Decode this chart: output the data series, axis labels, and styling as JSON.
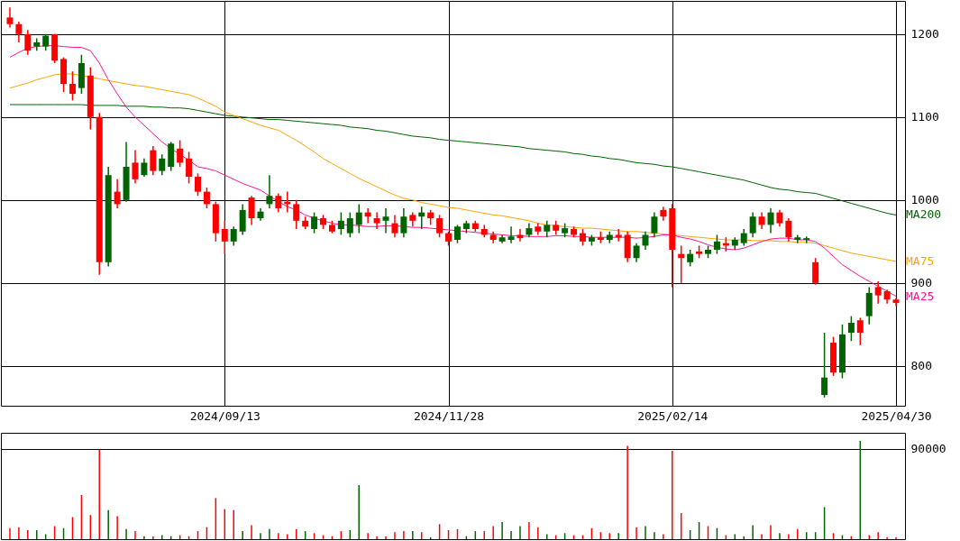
{
  "chart_data": [
    {
      "type": "candlestick",
      "categories": [
        null,
        null,
        null,
        null,
        null,
        null,
        null,
        null,
        null,
        null,
        null,
        null,
        null,
        null,
        null,
        null,
        null,
        null,
        null,
        null,
        null,
        null,
        null,
        null,
        "2024/09/13",
        null,
        null,
        null,
        null,
        null,
        null,
        null,
        null,
        null,
        null,
        null,
        null,
        null,
        null,
        null,
        null,
        null,
        null,
        null,
        null,
        null,
        null,
        null,
        null,
        "2024/11/28",
        null,
        null,
        null,
        null,
        null,
        null,
        null,
        null,
        null,
        null,
        null,
        null,
        null,
        null,
        null,
        null,
        null,
        null,
        null,
        null,
        null,
        null,
        null,
        null,
        "2025/02/14",
        null,
        null,
        null,
        null,
        null,
        null,
        null,
        null,
        null,
        null,
        null,
        null,
        null,
        null,
        null,
        null,
        null,
        null,
        null,
        null,
        null,
        null,
        null,
        null,
        "2025/04/30"
      ],
      "ohlc": [
        [
          1220,
          1232,
          1208,
          1212
        ],
        [
          1212,
          1215,
          1190,
          1200
        ],
        [
          1200,
          1205,
          1175,
          1180
        ],
        [
          1185,
          1195,
          1180,
          1190
        ],
        [
          1185,
          1200,
          1180,
          1198
        ],
        [
          1200,
          1200,
          1165,
          1168
        ],
        [
          1170,
          1172,
          1130,
          1140
        ],
        [
          1140,
          1155,
          1120,
          1128
        ],
        [
          1135,
          1175,
          1128,
          1165
        ],
        [
          1150,
          1160,
          1085,
          1100
        ],
        [
          1100,
          1105,
          910,
          925
        ],
        [
          925,
          1040,
          920,
          1030
        ],
        [
          1010,
          1025,
          990,
          995
        ],
        [
          1000,
          1070,
          998,
          1040
        ],
        [
          1045,
          1060,
          1020,
          1025
        ],
        [
          1030,
          1050,
          1028,
          1045
        ],
        [
          1060,
          1065,
          1030,
          1035
        ],
        [
          1035,
          1055,
          1030,
          1050
        ],
        [
          1040,
          1070,
          1035,
          1068
        ],
        [
          1062,
          1072,
          1040,
          1045
        ],
        [
          1050,
          1058,
          1020,
          1028
        ],
        [
          1028,
          1032,
          1005,
          1010
        ],
        [
          1010,
          1015,
          990,
          995
        ],
        [
          995,
          998,
          950,
          960
        ],
        [
          965,
          975,
          935,
          950
        ],
        [
          950,
          968,
          945,
          965
        ],
        [
          962,
          995,
          958,
          988
        ],
        [
          1003,
          1005,
          970,
          978
        ],
        [
          978,
          990,
          975,
          986
        ],
        [
          995,
          1030,
          990,
          1005
        ],
        [
          1005,
          1008,
          985,
          990
        ],
        [
          998,
          1010,
          985,
          995
        ],
        [
          995,
          1000,
          965,
          975
        ],
        [
          975,
          980,
          965,
          968
        ],
        [
          965,
          985,
          960,
          980
        ],
        [
          978,
          982,
          965,
          970
        ],
        [
          970,
          975,
          960,
          962
        ],
        [
          965,
          985,
          958,
          975
        ],
        [
          960,
          985,
          955,
          978
        ],
        [
          970,
          995,
          960,
          985
        ],
        [
          985,
          990,
          972,
          980
        ],
        [
          978,
          985,
          965,
          972
        ],
        [
          975,
          990,
          960,
          980
        ],
        [
          972,
          982,
          955,
          960
        ],
        [
          960,
          990,
          955,
          980
        ],
        [
          982,
          985,
          968,
          975
        ],
        [
          980,
          992,
          965,
          985
        ],
        [
          985,
          988,
          970,
          978
        ],
        [
          978,
          982,
          955,
          960
        ],
        [
          960,
          962,
          945,
          950
        ],
        [
          952,
          970,
          948,
          968
        ],
        [
          965,
          975,
          960,
          972
        ],
        [
          972,
          975,
          962,
          965
        ],
        [
          965,
          970,
          955,
          958
        ],
        [
          958,
          962,
          948,
          952
        ],
        [
          950,
          958,
          948,
          955
        ],
        [
          952,
          968,
          948,
          956
        ],
        [
          958,
          965,
          950,
          954
        ],
        [
          958,
          972,
          955,
          966
        ],
        [
          968,
          972,
          958,
          962
        ],
        [
          962,
          975,
          955,
          970
        ],
        [
          970,
          975,
          958,
          963
        ],
        [
          960,
          972,
          955,
          966
        ],
        [
          965,
          968,
          955,
          958
        ],
        [
          960,
          965,
          945,
          950
        ],
        [
          950,
          958,
          945,
          955
        ],
        [
          955,
          962,
          948,
          952
        ],
        [
          952,
          962,
          948,
          958
        ],
        [
          958,
          965,
          950,
          955
        ],
        [
          958,
          962,
          925,
          930
        ],
        [
          930,
          948,
          925,
          945
        ],
        [
          945,
          962,
          940,
          958
        ],
        [
          960,
          985,
          955,
          980
        ],
        [
          988,
          992,
          975,
          980
        ],
        [
          990,
          995,
          895,
          940
        ],
        [
          935,
          945,
          900,
          930
        ],
        [
          925,
          940,
          920,
          935
        ],
        [
          938,
          945,
          930,
          935
        ],
        [
          935,
          945,
          930,
          940
        ],
        [
          940,
          958,
          935,
          950
        ],
        [
          948,
          955,
          938,
          945
        ],
        [
          945,
          955,
          940,
          952
        ],
        [
          948,
          965,
          945,
          960
        ],
        [
          960,
          985,
          955,
          980
        ],
        [
          980,
          985,
          965,
          970
        ],
        [
          970,
          990,
          960,
          985
        ],
        [
          985,
          988,
          968,
          972
        ],
        [
          975,
          978,
          950,
          955
        ],
        [
          952,
          958,
          948,
          955
        ],
        [
          952,
          956,
          948,
          954
        ],
        [
          925,
          930,
          898,
          900
        ],
        [
          765,
          840,
          762,
          786
        ],
        [
          828,
          835,
          788,
          792
        ],
        [
          792,
          850,
          785,
          838
        ],
        [
          840,
          860,
          830,
          852
        ],
        [
          855,
          858,
          825,
          840
        ],
        [
          860,
          895,
          850,
          888
        ],
        [
          895,
          902,
          875,
          885
        ],
        [
          890,
          892,
          875,
          880
        ],
        [
          880,
          882,
          872,
          876
        ]
      ],
      "colors": [
        "#ff0000",
        "#ff0000",
        "#ff0000",
        "#006400",
        "#006400",
        "#ff0000",
        "#ff0000",
        "#ff0000",
        "#006400",
        "#ff0000",
        "#ff0000",
        "#006400",
        "#ff0000",
        "#006400",
        "#ff0000",
        "#006400",
        "#ff0000",
        "#006400",
        "#006400",
        "#ff0000",
        "#ff0000",
        "#ff0000",
        "#ff0000",
        "#ff0000",
        "#ff0000",
        "#006400",
        "#006400",
        "#ff0000",
        "#006400",
        "#006400",
        "#ff0000",
        "#ff0000",
        "#ff0000",
        "#ff0000",
        "#006400",
        "#ff0000",
        "#ff0000",
        "#006400",
        "#006400",
        "#006400",
        "#ff0000",
        "#ff0000",
        "#006400",
        "#ff0000",
        "#006400",
        "#ff0000",
        "#006400",
        "#ff0000",
        "#ff0000",
        "#ff0000",
        "#006400",
        "#006400",
        "#ff0000",
        "#ff0000",
        "#ff0000",
        "#006400",
        "#006400",
        "#ff0000",
        "#006400",
        "#ff0000",
        "#006400",
        "#ff0000",
        "#006400",
        "#ff0000",
        "#ff0000",
        "#006400",
        "#ff0000",
        "#006400",
        "#ff0000",
        "#ff0000",
        "#006400",
        "#006400",
        "#006400",
        "#ff0000",
        "#ff0000",
        "#ff0000",
        "#006400",
        "#ff0000",
        "#006400",
        "#006400",
        "#ff0000",
        "#006400",
        "#006400",
        "#006400",
        "#ff0000",
        "#006400",
        "#ff0000",
        "#ff0000",
        "#006400",
        "#006400",
        "#ff0000",
        "#006400",
        "#ff0000",
        "#006400",
        "#006400",
        "#ff0000",
        "#006400",
        "#ff0000",
        "#ff0000",
        "#ff0000"
      ],
      "series": [
        {
          "name": "MA200",
          "type": "line",
          "color": "#006400",
          "values": [
            1115,
            1115,
            1115,
            1115,
            1115,
            1115,
            1115,
            1115,
            1115,
            1114,
            1114,
            1114,
            1114,
            1113,
            1113,
            1113,
            1112,
            1112,
            1111,
            1111,
            1110,
            1108,
            1106,
            1104,
            1102,
            1101,
            1100,
            1099,
            1098,
            1097,
            1097,
            1096,
            1095,
            1094,
            1093,
            1092,
            1091,
            1090,
            1088,
            1087,
            1086,
            1084,
            1083,
            1081,
            1079,
            1077,
            1076,
            1075,
            1073,
            1072,
            1071,
            1070,
            1069,
            1068,
            1067,
            1066,
            1065,
            1064,
            1062,
            1061,
            1060,
            1059,
            1058,
            1056,
            1055,
            1053,
            1052,
            1050,
            1049,
            1047,
            1045,
            1044,
            1043,
            1041,
            1040,
            1038,
            1036,
            1034,
            1032,
            1030,
            1028,
            1026,
            1024,
            1021,
            1018,
            1015,
            1013,
            1012,
            1010,
            1009,
            1008,
            1005,
            1002,
            999,
            996,
            993,
            990,
            987,
            984,
            982
          ]
        },
        {
          "name": "MA75",
          "type": "line",
          "color": "#ffa500",
          "values": [
            1135,
            1138,
            1141,
            1145,
            1148,
            1151,
            1152,
            1152,
            1150,
            1148,
            1146,
            1144,
            1142,
            1140,
            1138,
            1137,
            1135,
            1133,
            1131,
            1129,
            1127,
            1123,
            1118,
            1113,
            1106,
            1102,
            1098,
            1094,
            1090,
            1087,
            1084,
            1078,
            1072,
            1065,
            1058,
            1050,
            1044,
            1038,
            1032,
            1026,
            1021,
            1016,
            1011,
            1006,
            1002,
            1000,
            997,
            995,
            993,
            991,
            990,
            988,
            986,
            984,
            982,
            981,
            979,
            977,
            975,
            972,
            970,
            969,
            968,
            967,
            966,
            966,
            965,
            964,
            963,
            962,
            962,
            961,
            960,
            959,
            958,
            957,
            956,
            955,
            954,
            953,
            952,
            952,
            952,
            951,
            951,
            951,
            950,
            950,
            949,
            949,
            948,
            945,
            942,
            939,
            936,
            934,
            932,
            930,
            928,
            926
          ]
        },
        {
          "name": "MA25",
          "type": "line",
          "color": "#ff1493",
          "values": [
            1172,
            1178,
            1183,
            1185,
            1186,
            1186,
            1185,
            1184,
            1184,
            1180,
            1165,
            1145,
            1128,
            1112,
            1100,
            1090,
            1080,
            1070,
            1062,
            1055,
            1048,
            1040,
            1038,
            1035,
            1030,
            1025,
            1020,
            1016,
            1012,
            1005,
            998,
            992,
            988,
            982,
            978,
            975,
            972,
            970,
            970,
            969,
            968,
            968,
            969,
            969,
            968,
            967,
            967,
            966,
            965,
            964,
            963,
            962,
            961,
            960,
            959,
            958,
            957,
            957,
            956,
            956,
            956,
            957,
            957,
            956,
            956,
            955,
            955,
            955,
            955,
            955,
            954,
            955,
            956,
            958,
            958,
            955,
            953,
            950,
            946,
            943,
            941,
            940,
            942,
            946,
            950,
            953,
            954,
            954,
            952,
            952,
            950,
            942,
            932,
            922,
            915,
            908,
            902,
            896,
            890,
            884
          ]
        }
      ],
      "ylim": [
        752,
        1240
      ],
      "yticks": [
        800,
        900,
        1000,
        1100,
        1200
      ],
      "grid": true,
      "marker": "none",
      "line_style": "solid"
    },
    {
      "type": "bar",
      "categories": [
        null,
        null,
        null,
        null,
        null,
        null,
        null,
        null,
        null,
        null,
        null,
        null,
        null,
        null,
        null,
        null,
        null,
        null,
        null,
        null,
        null,
        null,
        null,
        null,
        "2024/09/13",
        null,
        null,
        null,
        null,
        null,
        null,
        null,
        null,
        null,
        null,
        null,
        null,
        null,
        null,
        null,
        null,
        null,
        null,
        null,
        null,
        null,
        null,
        null,
        null,
        "2024/11/28",
        null,
        null,
        null,
        null,
        null,
        null,
        null,
        null,
        null,
        null,
        null,
        null,
        null,
        null,
        null,
        null,
        null,
        null,
        null,
        null,
        null,
        null,
        null,
        null,
        "2025/02/14",
        null,
        null,
        null,
        null,
        null,
        null,
        null,
        null,
        null,
        null,
        null,
        null,
        null,
        null,
        null,
        null,
        null,
        null,
        null,
        null,
        null,
        null,
        null,
        null,
        "2025/04/30"
      ],
      "values": [
        11000,
        12000,
        9000,
        9000,
        5000,
        13000,
        11000,
        22000,
        44000,
        24000,
        89000,
        29000,
        23000,
        10000,
        8000,
        3000,
        3000,
        4000,
        3000,
        4000,
        3000,
        8000,
        12000,
        41000,
        30000,
        29000,
        8000,
        14000,
        6000,
        10000,
        6000,
        5000,
        10000,
        8000,
        6000,
        4000,
        3000,
        8000,
        9000,
        54000,
        6000,
        3000,
        3000,
        7000,
        8000,
        8000,
        7000,
        2000,
        15000,
        9000,
        10000,
        3000,
        8000,
        8000,
        13000,
        17000,
        8000,
        13000,
        17000,
        12000,
        5000,
        4000,
        6000,
        4000,
        4000,
        11000,
        7000,
        6000,
        6000,
        93000,
        12000,
        13000,
        7000,
        5000,
        88000,
        26000,
        9000,
        17000,
        13000,
        11000,
        4000,
        5000,
        3000,
        14000,
        5000,
        14000,
        6000,
        5000,
        10000,
        7000,
        7000,
        32000,
        6000,
        4000,
        3000,
        98000,
        4000,
        7000,
        2000,
        2000
      ],
      "colors": [
        "#ff0000",
        "#ff0000",
        "#ff0000",
        "#006400",
        "#006400",
        "#ff0000",
        "#006400",
        "#ff0000",
        "#ff0000",
        "#ff0000",
        "#ff0000",
        "#006400",
        "#ff0000",
        "#006400",
        "#ff0000",
        "#006400",
        "#ff0000",
        "#006400",
        "#006400",
        "#ff0000",
        "#ff0000",
        "#ff0000",
        "#ff0000",
        "#ff0000",
        "#ff0000",
        "#ff0000",
        "#006400",
        "#ff0000",
        "#006400",
        "#006400",
        "#ff0000",
        "#ff0000",
        "#ff0000",
        "#006400",
        "#ff0000",
        "#ff0000",
        "#ff0000",
        "#ff0000",
        "#006400",
        "#006400",
        "#ff0000",
        "#ff0000",
        "#ff0000",
        "#ff0000",
        "#ff0000",
        "#006400",
        "#ff0000",
        "#006400",
        "#ff0000",
        "#ff0000",
        "#ff0000",
        "#006400",
        "#006400",
        "#ff0000",
        "#ff0000",
        "#006400",
        "#006400",
        "#006400",
        "#ff0000",
        "#ff0000",
        "#006400",
        "#ff0000",
        "#006400",
        "#ff0000",
        "#ff0000",
        "#ff0000",
        "#ff0000",
        "#ff0000",
        "#006400",
        "#ff0000",
        "#ff0000",
        "#006400",
        "#006400",
        "#ff0000",
        "#ff0000",
        "#ff0000",
        "#006400",
        "#006400",
        "#ff0000",
        "#006400",
        "#ff0000",
        "#006400",
        "#006400",
        "#006400",
        "#ff0000",
        "#ff0000",
        "#006400",
        "#ff0000",
        "#ff0000",
        "#006400",
        "#006400",
        "#006400",
        "#ff0000",
        "#006400",
        "#ff0000",
        "#006400",
        "#ff0000",
        "#ff0000",
        "#ff0000",
        "#ff0000"
      ],
      "ylim": [
        0,
        106000
      ],
      "yticks": [
        90000
      ],
      "grid": "y",
      "tick_labels": "y"
    }
  ]
}
